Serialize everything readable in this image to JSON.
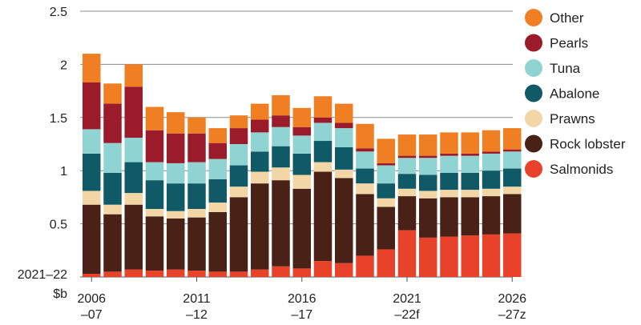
{
  "chart_data": {
    "type": "bar",
    "stacked": true,
    "ylim": [
      0,
      2.5
    ],
    "yticks": [
      0.5,
      1,
      1.5,
      2,
      2.5
    ],
    "ylabel_lines": [
      "2021–22",
      "$b"
    ],
    "grid": true,
    "legend_position": "right",
    "categories": [
      "2006-07",
      "2007-08",
      "2008-09",
      "2009-10",
      "2010-11",
      "2011-12",
      "2012-13",
      "2013-14",
      "2014-15",
      "2015-16",
      "2016-17",
      "2017-18",
      "2018-19",
      "2019-20",
      "2020-21",
      "2021-22f",
      "2022-23z",
      "2023-24z",
      "2024-25z",
      "2025-26z",
      "2026-27z"
    ],
    "x_tick_labels": [
      {
        "index": 0,
        "line1": "2006",
        "line2": "–07"
      },
      {
        "index": 5,
        "line1": "2011",
        "line2": "–12"
      },
      {
        "index": 10,
        "line1": "2016",
        "line2": "–17"
      },
      {
        "index": 15,
        "line1": "2021",
        "line2": "–22f"
      },
      {
        "index": 20,
        "line1": "2026",
        "line2": "–27z"
      }
    ],
    "series": [
      {
        "name": "Salmonids",
        "color": "#e8432a",
        "values": [
          0.03,
          0.05,
          0.07,
          0.06,
          0.07,
          0.06,
          0.05,
          0.05,
          0.07,
          0.1,
          0.08,
          0.15,
          0.13,
          0.2,
          0.26,
          0.44,
          0.37,
          0.38,
          0.39,
          0.4,
          0.41
        ]
      },
      {
        "name": "Rock lobster",
        "color": "#4a2116",
        "values": [
          0.65,
          0.54,
          0.61,
          0.51,
          0.48,
          0.5,
          0.56,
          0.7,
          0.81,
          0.81,
          0.75,
          0.84,
          0.8,
          0.58,
          0.4,
          0.32,
          0.37,
          0.37,
          0.36,
          0.36,
          0.37
        ]
      },
      {
        "name": "Prawns",
        "color": "#f2d6a6",
        "values": [
          0.13,
          0.09,
          0.11,
          0.07,
          0.07,
          0.08,
          0.09,
          0.1,
          0.11,
          0.12,
          0.13,
          0.09,
          0.08,
          0.1,
          0.08,
          0.07,
          0.07,
          0.07,
          0.07,
          0.07,
          0.07
        ]
      },
      {
        "name": "Abalone",
        "color": "#0f5a66",
        "values": [
          0.35,
          0.3,
          0.29,
          0.27,
          0.26,
          0.24,
          0.22,
          0.2,
          0.19,
          0.2,
          0.2,
          0.2,
          0.21,
          0.14,
          0.14,
          0.14,
          0.15,
          0.16,
          0.16,
          0.17,
          0.17
        ]
      },
      {
        "name": "Tuna",
        "color": "#8fd3d2",
        "values": [
          0.23,
          0.28,
          0.23,
          0.17,
          0.19,
          0.2,
          0.19,
          0.2,
          0.18,
          0.18,
          0.17,
          0.17,
          0.18,
          0.16,
          0.17,
          0.15,
          0.16,
          0.16,
          0.16,
          0.16,
          0.16
        ]
      },
      {
        "name": "Pearls",
        "color": "#9b1b2a",
        "values": [
          0.44,
          0.37,
          0.48,
          0.3,
          0.28,
          0.27,
          0.15,
          0.15,
          0.12,
          0.11,
          0.08,
          0.05,
          0.05,
          0.03,
          0.02,
          0.02,
          0.02,
          0.02,
          0.02,
          0.02,
          0.02
        ]
      },
      {
        "name": "Other",
        "color": "#f07f24",
        "values": [
          0.27,
          0.19,
          0.21,
          0.22,
          0.2,
          0.15,
          0.14,
          0.12,
          0.15,
          0.19,
          0.18,
          0.2,
          0.18,
          0.23,
          0.23,
          0.2,
          0.2,
          0.2,
          0.2,
          0.2,
          0.2
        ]
      }
    ]
  }
}
